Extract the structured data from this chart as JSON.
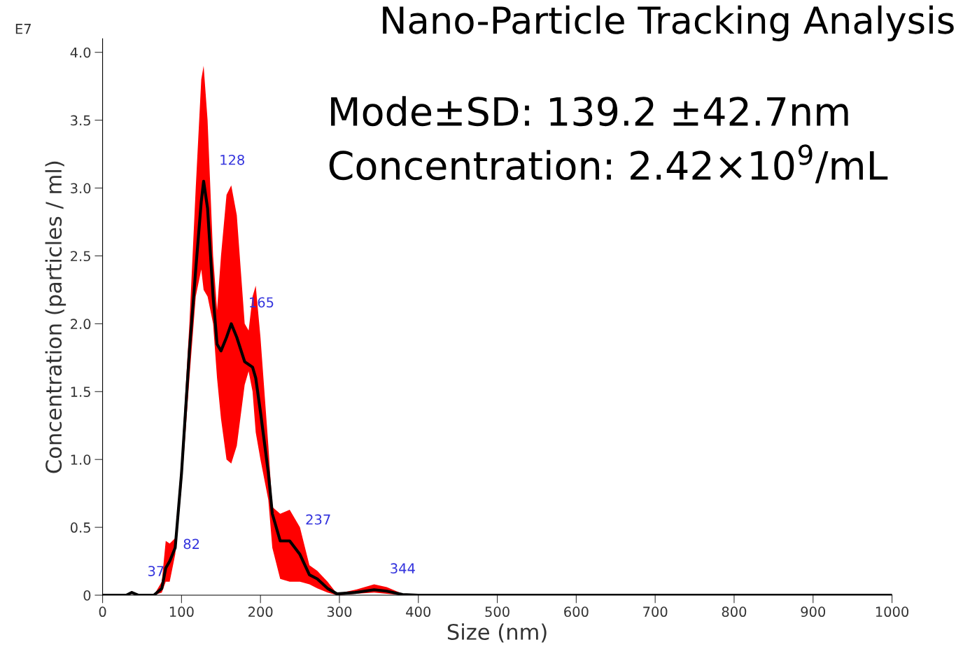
{
  "chart_data": {
    "type": "line",
    "title": "Nano-Particle Tracking Analysis",
    "xlabel": "Size (nm)",
    "ylabel": "Concentration (particles / ml)",
    "x": [
      0,
      30,
      37,
      45,
      65,
      75,
      80,
      85,
      92,
      100,
      110,
      118,
      125,
      128,
      133,
      140,
      145,
      150,
      157,
      163,
      170,
      180,
      185,
      190,
      194,
      200,
      210,
      215,
      225,
      237,
      250,
      262,
      272,
      285,
      297,
      320,
      344,
      360,
      380,
      400,
      1000
    ],
    "series": [
      {
        "color": "#000000",
        "values": [
          0,
          0,
          0.02,
          0,
          0,
          0.05,
          0.2,
          0.25,
          0.35,
          0.9,
          1.8,
          2.4,
          2.9,
          3.05,
          2.85,
          2.2,
          1.85,
          1.8,
          1.9,
          2.0,
          1.9,
          1.72,
          1.7,
          1.68,
          1.6,
          1.35,
          0.9,
          0.6,
          0.4,
          0.4,
          0.3,
          0.15,
          0.12,
          0.05,
          0.01,
          0.02,
          0.04,
          0.03,
          0.005,
          0,
          0
        ],
        "upper": [
          0,
          0,
          0.03,
          0,
          0,
          0.1,
          0.4,
          0.38,
          0.42,
          1.0,
          2.0,
          3.0,
          3.8,
          3.9,
          3.5,
          2.5,
          2.1,
          2.5,
          2.95,
          3.02,
          2.8,
          2.0,
          1.95,
          2.2,
          2.28,
          1.9,
          1.1,
          0.65,
          0.6,
          0.63,
          0.5,
          0.22,
          0.18,
          0.1,
          0.01,
          0.04,
          0.08,
          0.06,
          0.01,
          0,
          0
        ],
        "lower": [
          0,
          0,
          0.01,
          0,
          0,
          0.02,
          0.1,
          0.1,
          0.3,
          0.8,
          1.6,
          2.2,
          2.4,
          2.25,
          2.2,
          2.0,
          1.6,
          1.3,
          1.0,
          0.97,
          1.1,
          1.55,
          1.65,
          1.5,
          1.2,
          1.0,
          0.7,
          0.35,
          0.12,
          0.1,
          0.1,
          0.08,
          0.05,
          0.02,
          0,
          0.01,
          0.02,
          0.01,
          0,
          0,
          0
        ]
      }
    ],
    "xlim": [
      0,
      1000
    ],
    "xticks": [
      0,
      100,
      200,
      300,
      400,
      500,
      600,
      700,
      800,
      900,
      1000
    ],
    "ylim": [
      0,
      4.1
    ],
    "yticks": [
      0,
      0.5,
      {
        "value": 1,
        "label": "1.0"
      },
      1.5,
      {
        "value": 2,
        "label": "2.0"
      },
      2.5,
      {
        "value": 3,
        "label": "3.0"
      },
      3.5,
      {
        "value": 4,
        "label": "4.0"
      }
    ],
    "grid": false,
    "legend": false,
    "annotations": [
      "E7",
      "Mode±SD: 139.2 ±42.7nm",
      "Concentration: 2.42×10$^{9}$/mL",
      {
        "text": "37",
        "x": 37,
        "y": 0.02
      },
      {
        "text": "82",
        "x": 82,
        "y": 0.22
      },
      {
        "text": "128",
        "x": 128,
        "y": 3.05
      },
      {
        "text": "165",
        "x": 165,
        "y": 2.0
      },
      {
        "text": "237",
        "x": 237,
        "y": 0.4
      },
      {
        "text": "344",
        "x": 344,
        "y": 0.04
      }
    ]
  }
}
